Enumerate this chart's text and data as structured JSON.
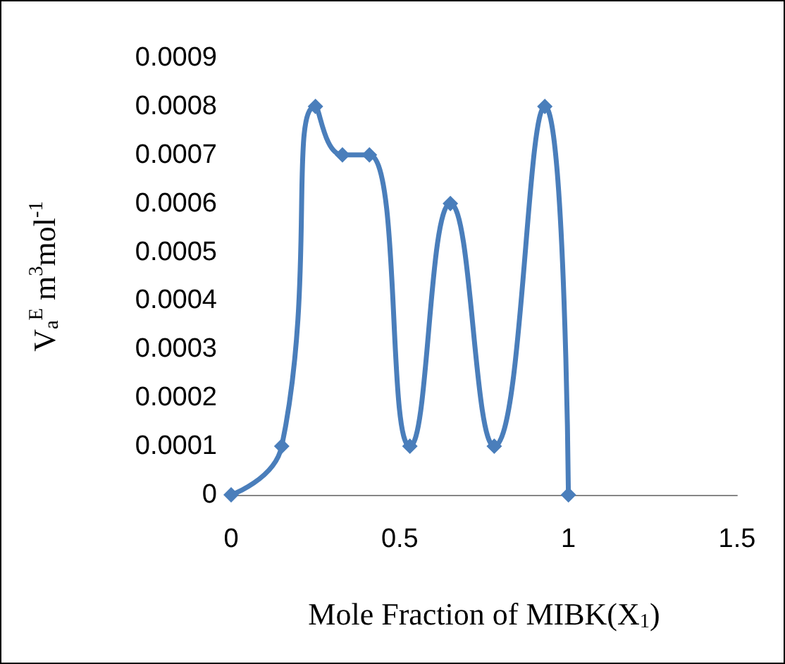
{
  "chart_data": {
    "type": "line",
    "xlabel": "Mole Fraction of MIBK(X$_{1}$)",
    "ylabel": "V$_{a}$$^{E}$ m$^{3}$mol$^{-1}$",
    "x": [
      0,
      0.15,
      0.25,
      0.33,
      0.41,
      0.53,
      0.65,
      0.78,
      0.93,
      1.0
    ],
    "series": [
      {
        "color": "#4a7ebb",
        "values": [
          0,
          0.0001,
          0.0008,
          0.0007,
          0.0007,
          0.0001,
          0.0006,
          0.0001,
          0.0008,
          0
        ]
      }
    ],
    "xlim": [
      0,
      1.5
    ],
    "xticks": [
      0,
      0.5,
      1,
      1.5
    ],
    "ylim": [
      0,
      0.0009
    ],
    "yticks": [
      0,
      0.0001,
      0.0002,
      0.0003,
      0.0004,
      0.0005,
      0.0006,
      0.0007,
      0.0008,
      0.0009
    ],
    "grid": false,
    "marker": "diamond",
    "line_style": "solid"
  }
}
